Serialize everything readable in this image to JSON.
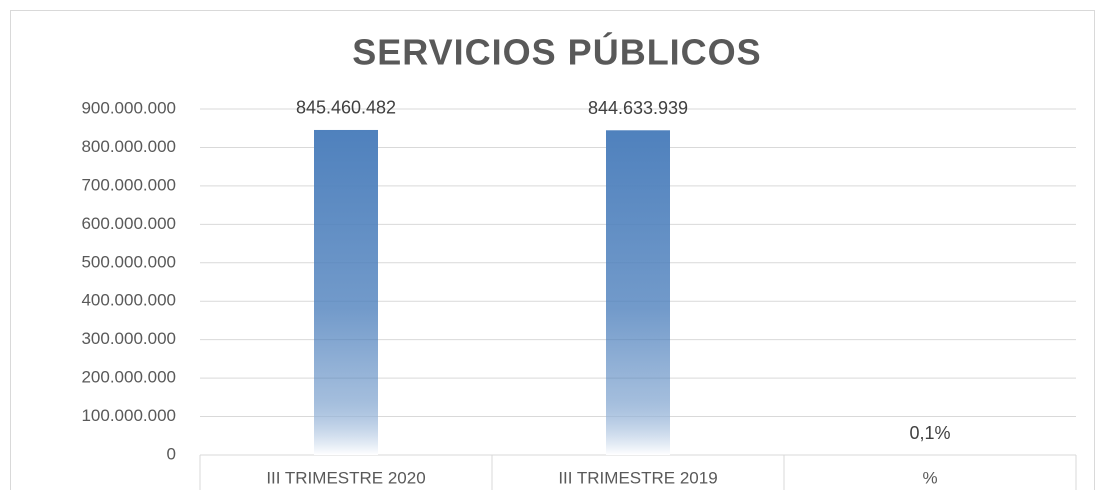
{
  "chart_data": {
    "type": "bar",
    "title": "SERVICIOS PÚBLICOS",
    "categories": [
      "III TRIMESTRE 2020",
      "III TRIMESTRE 2019",
      "%"
    ],
    "values": [
      845460482,
      844633939,
      0.1
    ],
    "value_labels": [
      "845.460.482",
      "844.633.939",
      "0,1%"
    ],
    "color": "#4f81bd",
    "ylim": [
      0,
      900000000
    ],
    "yticks": [
      0,
      {
        "value": 100000000,
        "label": "100.000.000"
      },
      {
        "value": 200000000,
        "label": "200.000.000"
      },
      {
        "value": 300000000,
        "label": "300.000.000"
      },
      {
        "value": 400000000,
        "label": "400.000.000"
      },
      {
        "value": 500000000,
        "label": "500.000.000"
      },
      {
        "value": 600000000,
        "label": "600.000.000"
      },
      {
        "value": 700000000,
        "label": "700.000.000"
      },
      {
        "value": 800000000,
        "label": "800.000.000"
      },
      {
        "value": 900000000,
        "label": "900.000.000"
      }
    ],
    "grid": true
  }
}
